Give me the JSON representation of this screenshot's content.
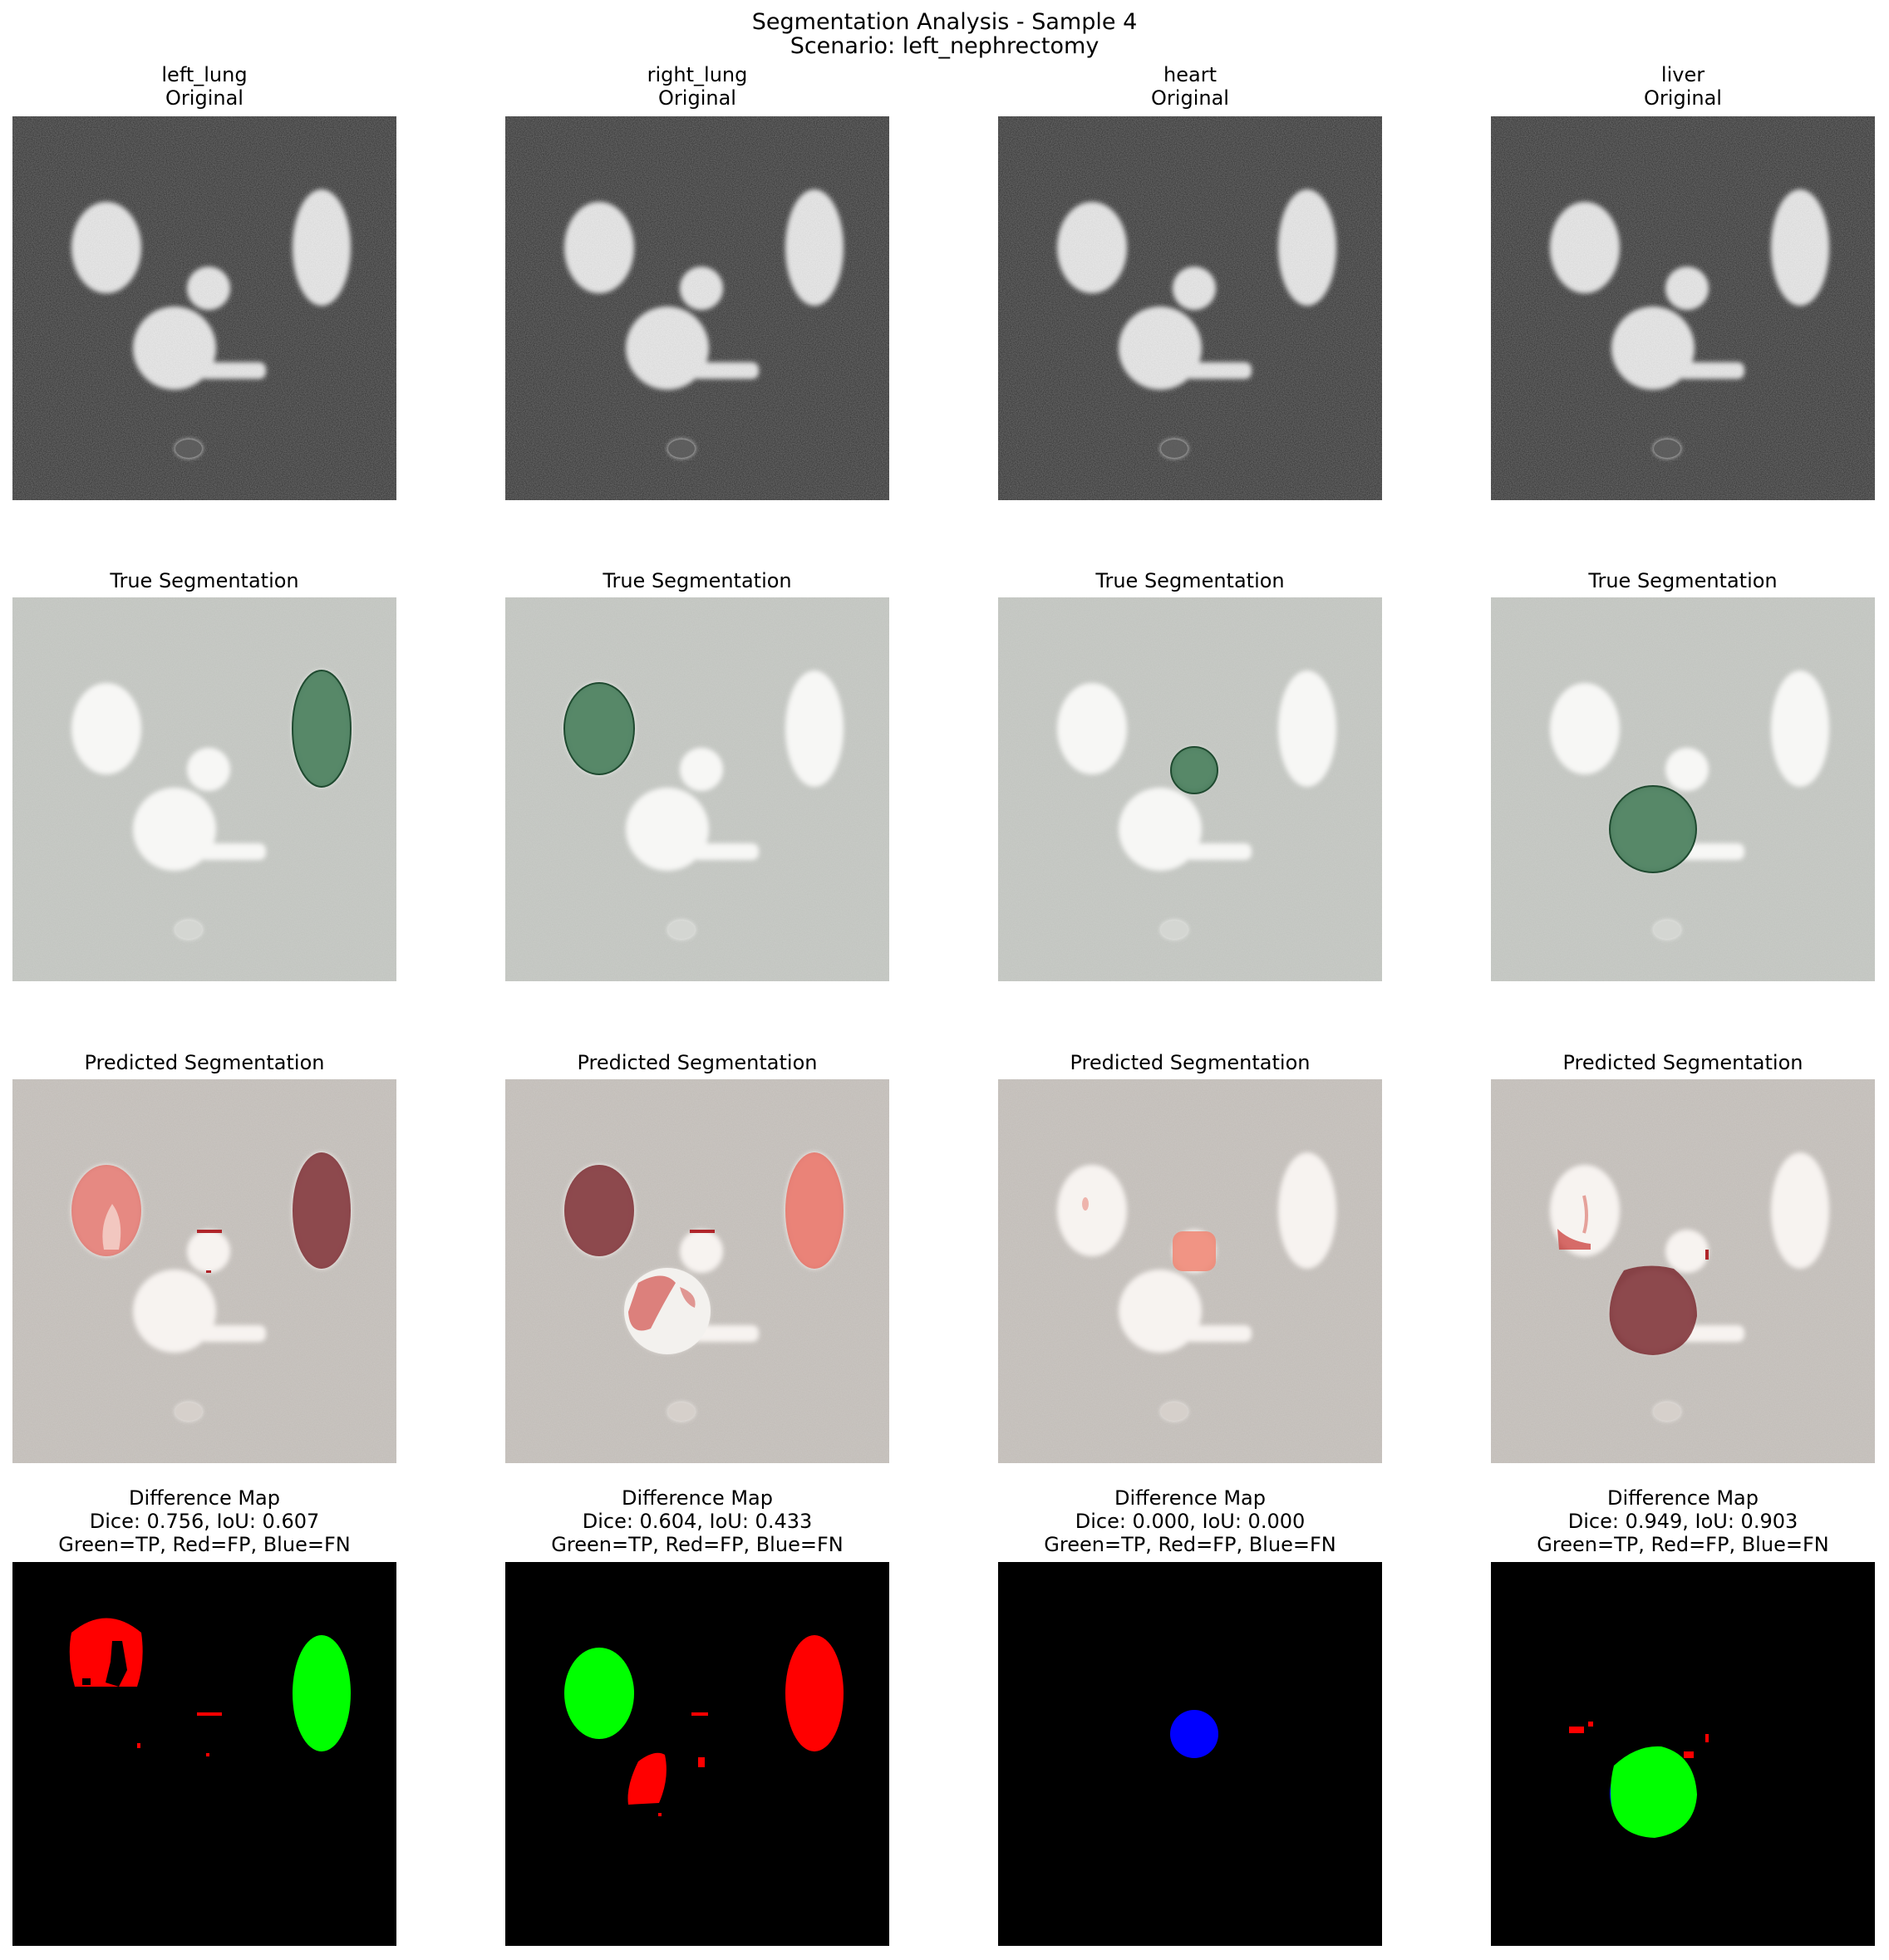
{
  "figure": {
    "title_line1": "Segmentation Analysis - Sample 4",
    "title_line2": "Scenario: left_nephrectomy"
  },
  "columns": [
    {
      "organ": "left_lung",
      "subtitle": "Original"
    },
    {
      "organ": "right_lung",
      "subtitle": "Original"
    },
    {
      "organ": "heart",
      "subtitle": "Original"
    },
    {
      "organ": "liver",
      "subtitle": "Original"
    }
  ],
  "rows": {
    "true_title": "True Segmentation",
    "pred_title": "Predicted Segmentation",
    "diff_title": "Difference Map",
    "legend": "Green=TP, Red=FP, Blue=FN"
  },
  "metrics": [
    "Dice: 0.756, IoU: 0.607",
    "Dice: 0.604, IoU: 0.433",
    "Dice: 0.000, IoU: 0.000",
    "Dice: 0.949, IoU: 0.903"
  ],
  "colors": {
    "tp": "#00ff00",
    "fp": "#ff0000",
    "fn": "#0000ff",
    "true_overlay": "#2e6b45",
    "pred_overlay": "#7a2a30",
    "original_bg": "#2a2a2a",
    "overlay_bg": "#bfc2bd"
  }
}
